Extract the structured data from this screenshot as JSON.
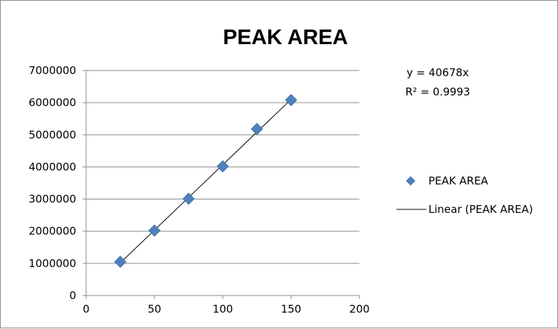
{
  "chart_data": {
    "type": "scatter",
    "title": "PEAK AREA",
    "xlabel": "",
    "ylabel": "",
    "xlim": [
      0,
      200
    ],
    "ylim": [
      0,
      7000000
    ],
    "xticks": [
      "0",
      "50",
      "100",
      "150",
      "200"
    ],
    "yticks": [
      "0",
      "1000000",
      "2000000",
      "3000000",
      "4000000",
      "5000000",
      "6000000",
      "7000000"
    ],
    "grid": "horizontal",
    "legend_position": "right",
    "series": [
      {
        "name": "PEAK AREA",
        "marker": "diamond",
        "color": "#4f81bd",
        "x": [
          25,
          50,
          75,
          100,
          125,
          150
        ],
        "y": [
          1050000,
          2020000,
          3010000,
          4020000,
          5180000,
          6080000
        ]
      }
    ],
    "trendline": {
      "name": "Linear (PEAK AREA)",
      "type": "linear",
      "slope": 40678,
      "intercept": 0,
      "x_range": [
        25,
        150
      ],
      "color": "#000000",
      "equation": "y = 40678x",
      "r_squared": "R² = 0.9993"
    }
  }
}
